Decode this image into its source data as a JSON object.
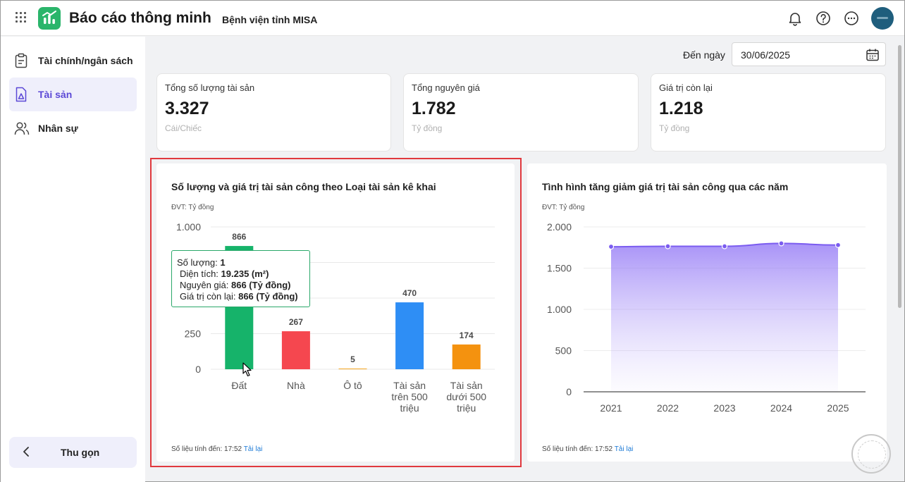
{
  "header": {
    "app_title": "Báo cáo thông minh",
    "org_name": "Bệnh viện tỉnh MISA",
    "icons": [
      "grid-icon",
      "bell-icon",
      "help-icon",
      "more-icon"
    ],
    "brand_color": "#2bb56b"
  },
  "sidebar": {
    "items": [
      {
        "label": "Tài chính/ngân sách",
        "icon": "clipboard-icon"
      },
      {
        "label": "Tài sản",
        "icon": "asset-doc-icon",
        "active": true
      },
      {
        "label": "Nhân sự",
        "icon": "users-icon"
      }
    ],
    "collapse_label": "Thu gọn",
    "accent_color": "#5b48d6"
  },
  "date_filter": {
    "label": "Đến ngày",
    "value": "30/06/2025"
  },
  "kpis": [
    {
      "title": "Tổng số lượng tài sản",
      "value": "3.327",
      "unit": "Cái/Chiếc"
    },
    {
      "title": "Tổng nguyên giá",
      "value": "1.782",
      "unit": "Tỷ đồng"
    },
    {
      "title": "Giá trị còn lại",
      "value": "1.218",
      "unit": "Tỷ đồng"
    }
  ],
  "chart1": {
    "title": "Số lượng và giá trị tài sản công theo Loại tài sản kê khai",
    "unit": "ĐVT: Tỷ đồng",
    "footer": "Số liệu tính đến: 17:52",
    "reload": "Tải lại",
    "tooltip": {
      "rows": [
        {
          "label": "Số lượng: ",
          "value": "1"
        },
        {
          "label": "Diện tích: ",
          "value": "19.235 (m²)"
        },
        {
          "label": "Nguyên giá: ",
          "value": "866 (Tỷ đồng)"
        },
        {
          "label": "Giá trị còn lại: ",
          "value": "866 (Tỷ đồng)"
        }
      ]
    }
  },
  "chart2": {
    "title": "Tình hình tăng giảm giá trị tài sản công qua các năm",
    "unit": "ĐVT: Tỷ đồng",
    "footer": "Số liệu tính đến: 17:52",
    "reload": "Tải lại"
  },
  "chart_data": [
    {
      "type": "bar",
      "categories": [
        [
          "Đất"
        ],
        [
          "Nhà"
        ],
        [
          "Ô tô"
        ],
        [
          "Tài sản",
          "trên 500",
          "triệu"
        ],
        [
          "Tài sản",
          "dưới 500",
          "triệu"
        ]
      ],
      "values": [
        866,
        267,
        5,
        470,
        174
      ],
      "labels": [
        "866",
        "267",
        "5",
        "470",
        "174"
      ],
      "colors": [
        "#16b36a",
        "#f5474f",
        "#f5a623",
        "#2e8ef5",
        "#f4920f"
      ],
      "yticks": [
        {
          "v": 0,
          "t": "0"
        },
        {
          "v": 250,
          "t": "250"
        },
        {
          "v": 1000,
          "t": "1.000"
        }
      ],
      "ylim": [
        0,
        1000
      ],
      "grid": true
    },
    {
      "type": "area",
      "x": [
        "2021",
        "2022",
        "2023",
        "2024",
        "2025"
      ],
      "values": [
        1760,
        1765,
        1765,
        1800,
        1780
      ],
      "color": "#7b5cf0",
      "yticks": [
        {
          "v": 0,
          "t": "0"
        },
        {
          "v": 500,
          "t": "500"
        },
        {
          "v": 1000,
          "t": "1.000"
        },
        {
          "v": 1500,
          "t": "1.500"
        },
        {
          "v": 2000,
          "t": "2.000"
        }
      ],
      "ylim": [
        0,
        2000
      ],
      "grid": true
    }
  ]
}
